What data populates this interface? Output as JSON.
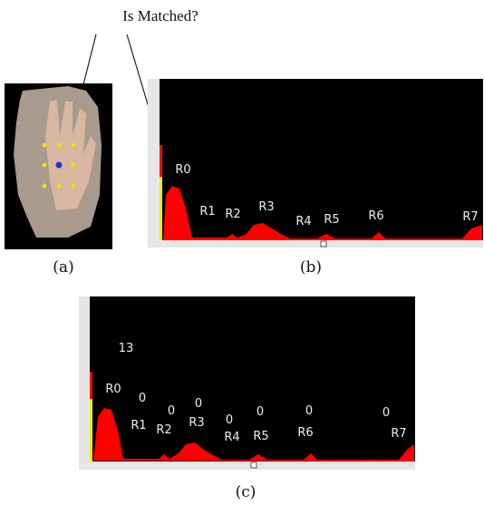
{
  "question": "Is Matched?",
  "panels": [
    {
      "label": "(a)"
    },
    {
      "label": "(b)",
      "regions": [
        "R0",
        "R1",
        "R2",
        "R3",
        "R4",
        "R5",
        "R6",
        "R7"
      ]
    },
    {
      "label": "(c)",
      "regions": [
        "R0",
        "R1",
        "R2",
        "R3",
        "R4",
        "R5",
        "R6",
        "R7"
      ],
      "scores": [
        13,
        0,
        0,
        0,
        0,
        0,
        0,
        0
      ]
    }
  ]
}
